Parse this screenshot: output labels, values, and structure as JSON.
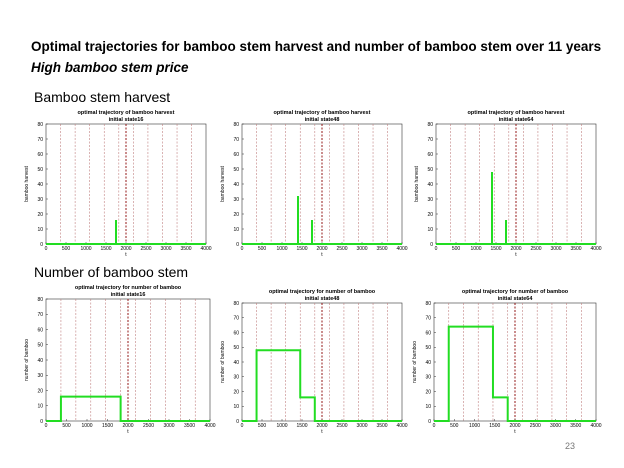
{
  "slide": {
    "title": "Optimal trajectories for bamboo stem harvest and number of bamboo stem over 11 years",
    "subtitle": "High bamboo stem price",
    "section_harvest": "Bamboo stem harvest",
    "section_number": "Number of bamboo stem",
    "page_number": "23"
  },
  "colors": {
    "series": "#22dd22",
    "minor_vline": "#c08080",
    "major_vline": "#8b0000"
  },
  "chart_data": [
    {
      "type": "line",
      "title": "optimal trajectory of bamboo harvest",
      "subtitle": "initial state16",
      "xlabel": "t",
      "ylabel": "bamboo harvest",
      "xlim": [
        0,
        4000
      ],
      "ylim": [
        0,
        80
      ],
      "xticks": [
        0,
        500,
        1000,
        1500,
        2000,
        2500,
        3000,
        3500,
        4000
      ],
      "yticks": [
        0,
        10,
        20,
        30,
        40,
        50,
        60,
        70,
        80
      ],
      "minor_vlines": [
        364,
        728,
        1092,
        1456,
        1820,
        2184,
        2548,
        2912,
        3276,
        3640
      ],
      "major_vline": 2000,
      "series": [
        {
          "name": "harvest",
          "x": [
            0,
            1750,
            1750,
            1750,
            4000
          ],
          "y": [
            0,
            0,
            16,
            0,
            0
          ]
        }
      ]
    },
    {
      "type": "line",
      "title": "optimal trajectory of bamboo harvest",
      "subtitle": "initial state48",
      "xlabel": "t",
      "ylabel": "bamboo harvest",
      "xlim": [
        0,
        4000
      ],
      "ylim": [
        0,
        80
      ],
      "xticks": [
        0,
        500,
        1000,
        1500,
        2000,
        2500,
        3000,
        3500,
        4000
      ],
      "yticks": [
        0,
        10,
        20,
        30,
        40,
        50,
        60,
        70,
        80
      ],
      "minor_vlines": [
        364,
        728,
        1092,
        1456,
        1820,
        2184,
        2548,
        2912,
        3276,
        3640
      ],
      "major_vline": 2000,
      "series": [
        {
          "name": "harvest",
          "x": [
            0,
            1400,
            1400,
            1400,
            1750,
            1750,
            1750,
            4000
          ],
          "y": [
            0,
            0,
            32,
            0,
            0,
            16,
            0,
            0
          ]
        }
      ]
    },
    {
      "type": "line",
      "title": "optimal trajectory of bamboo harvest",
      "subtitle": "initial state64",
      "xlabel": "t",
      "ylabel": "bamboo harvest",
      "xlim": [
        0,
        4000
      ],
      "ylim": [
        0,
        80
      ],
      "xticks": [
        0,
        500,
        1000,
        1500,
        2000,
        2500,
        3000,
        3500,
        4000
      ],
      "yticks": [
        0,
        10,
        20,
        30,
        40,
        50,
        60,
        70,
        80
      ],
      "minor_vlines": [
        364,
        728,
        1092,
        1456,
        1820,
        2184,
        2548,
        2912,
        3276,
        3640
      ],
      "major_vline": 2000,
      "series": [
        {
          "name": "harvest",
          "x": [
            0,
            1400,
            1400,
            1400,
            1750,
            1750,
            1750,
            4000
          ],
          "y": [
            0,
            0,
            48,
            0,
            0,
            16,
            0,
            0
          ]
        }
      ]
    },
    {
      "type": "line",
      "title": "optimal trajectory for number of bamboo",
      "subtitle": "initial state16",
      "xlabel": "t",
      "ylabel": "number of bamboo",
      "xlim": [
        0,
        4000
      ],
      "ylim": [
        0,
        80
      ],
      "xticks": [
        0,
        500,
        1000,
        1500,
        2000,
        2500,
        3000,
        3500,
        4000
      ],
      "yticks": [
        0,
        10,
        20,
        30,
        40,
        50,
        60,
        70,
        80
      ],
      "minor_vlines": [
        364,
        728,
        1092,
        1456,
        1820,
        2184,
        2548,
        2912,
        3276,
        3640
      ],
      "major_vline": 2000,
      "series": [
        {
          "name": "number",
          "x": [
            0,
            364,
            364,
            1820,
            1820,
            4000
          ],
          "y": [
            0,
            0,
            16,
            16,
            0,
            0
          ]
        }
      ]
    },
    {
      "type": "line",
      "title": "optimal trajectory for number of bamboo",
      "subtitle": "initial state48",
      "xlabel": "t",
      "ylabel": "number of bamboo",
      "xlim": [
        0,
        4000
      ],
      "ylim": [
        0,
        80
      ],
      "xticks": [
        0,
        500,
        1000,
        1500,
        2000,
        2500,
        3000,
        3500,
        4000
      ],
      "yticks": [
        0,
        10,
        20,
        30,
        40,
        50,
        60,
        70,
        80
      ],
      "minor_vlines": [
        364,
        728,
        1092,
        1456,
        1820,
        2184,
        2548,
        2912,
        3276,
        3640
      ],
      "major_vline": 2000,
      "series": [
        {
          "name": "number",
          "x": [
            0,
            364,
            364,
            1456,
            1456,
            1820,
            1820,
            4000
          ],
          "y": [
            0,
            0,
            48,
            48,
            16,
            16,
            0,
            0
          ]
        }
      ]
    },
    {
      "type": "line",
      "title": "optimal trajectory for number of bamboo",
      "subtitle": "initial state64",
      "xlabel": "t",
      "ylabel": "number of bamboo",
      "xlim": [
        0,
        4000
      ],
      "ylim": [
        0,
        80
      ],
      "xticks": [
        0,
        500,
        1000,
        1500,
        2000,
        2500,
        3000,
        3500,
        4000
      ],
      "yticks": [
        0,
        10,
        20,
        30,
        40,
        50,
        60,
        70,
        80
      ],
      "minor_vlines": [
        364,
        728,
        1092,
        1456,
        1820,
        2184,
        2548,
        2912,
        3276,
        3640
      ],
      "major_vline": 2000,
      "series": [
        {
          "name": "number",
          "x": [
            0,
            364,
            364,
            1456,
            1456,
            1820,
            1820,
            4000
          ],
          "y": [
            0,
            0,
            64,
            64,
            16,
            16,
            0,
            0
          ]
        }
      ]
    }
  ]
}
